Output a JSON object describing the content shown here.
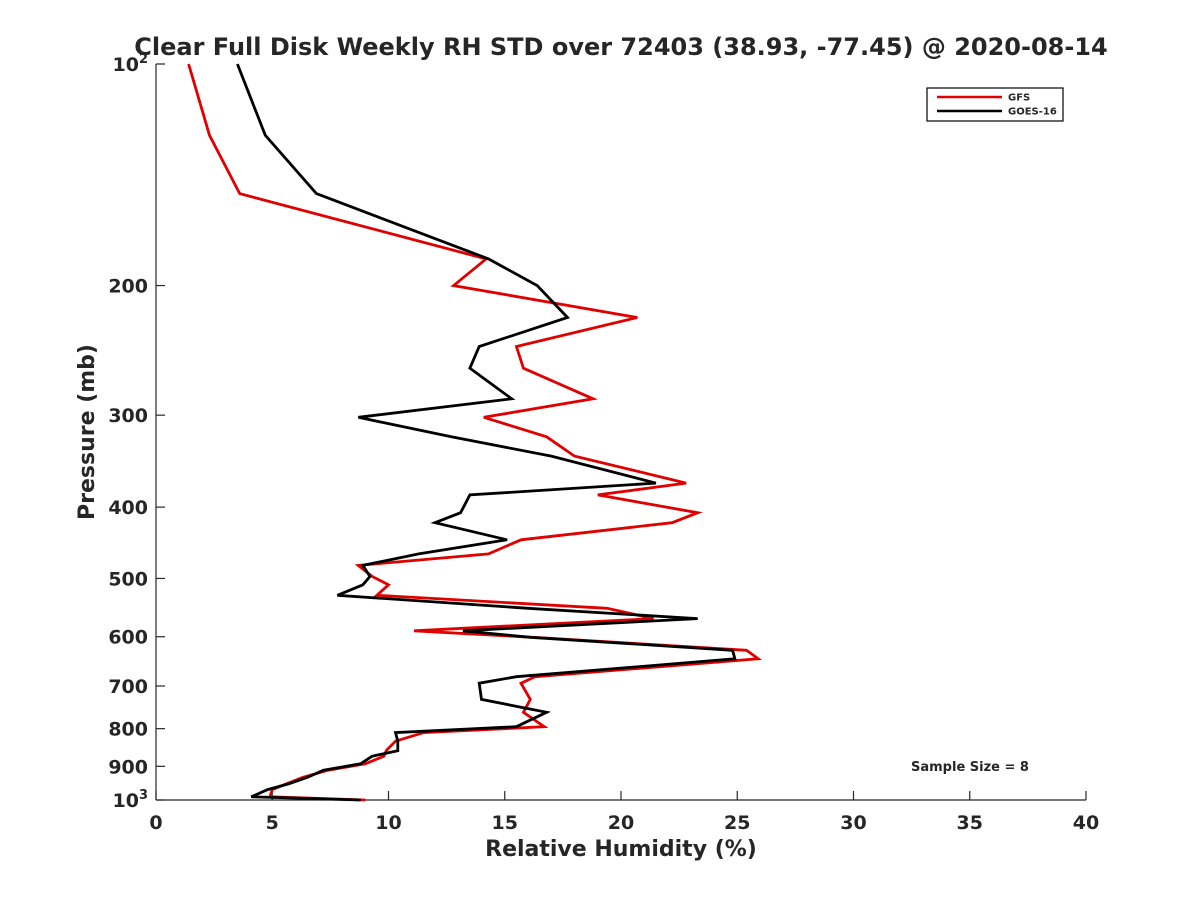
{
  "chart_data": {
    "type": "line",
    "title": "Clear Full Disk Weekly RH STD over 72403 (38.93, -77.45) @ 2020-08-14",
    "xlabel": "Relative Humidity (%)",
    "ylabel": "Pressure (mb)",
    "xlim": [
      0,
      40
    ],
    "ylim": [
      100,
      1000
    ],
    "yscale": "log",
    "y_reversed": true,
    "grid": false,
    "legend_position": "top-right",
    "x_ticks": [
      {
        "value": 0,
        "label": "0"
      },
      {
        "value": 5,
        "label": "5"
      },
      {
        "value": 10,
        "label": "10"
      },
      {
        "value": 15,
        "label": "15"
      },
      {
        "value": 20,
        "label": "20"
      },
      {
        "value": 25,
        "label": "25"
      },
      {
        "value": 30,
        "label": "30"
      },
      {
        "value": 35,
        "label": "35"
      },
      {
        "value": 40,
        "label": "40"
      }
    ],
    "y_ticks": [
      {
        "value": 100,
        "base": "10",
        "exp": "2"
      },
      {
        "value": 200,
        "base": "200",
        "exp": ""
      },
      {
        "value": 300,
        "base": "300",
        "exp": ""
      },
      {
        "value": 400,
        "base": "400",
        "exp": ""
      },
      {
        "value": 500,
        "base": "500",
        "exp": ""
      },
      {
        "value": 600,
        "base": "600",
        "exp": ""
      },
      {
        "value": 700,
        "base": "700",
        "exp": ""
      },
      {
        "value": 800,
        "base": "800",
        "exp": ""
      },
      {
        "value": 900,
        "base": "900",
        "exp": ""
      },
      {
        "value": 1000,
        "base": "10",
        "exp": "3"
      }
    ],
    "annotation": "Sample Size = 8",
    "series": [
      {
        "name": "GFS",
        "color": "#e00000",
        "points": [
          [
            1.4,
            100
          ],
          [
            2.3,
            125
          ],
          [
            3.6,
            150
          ],
          [
            14.2,
            184
          ],
          [
            12.8,
            200
          ],
          [
            20.7,
            221
          ],
          [
            15.5,
            242
          ],
          [
            15.8,
            259
          ],
          [
            18.8,
            285
          ],
          [
            14.1,
            302
          ],
          [
            16.8,
            321
          ],
          [
            18.0,
            341
          ],
          [
            22.8,
            371
          ],
          [
            19.0,
            385
          ],
          [
            23.3,
            407
          ],
          [
            22.2,
            420
          ],
          [
            15.7,
            443
          ],
          [
            14.3,
            463
          ],
          [
            8.7,
            480
          ],
          [
            9.3,
            497
          ],
          [
            10.0,
            510
          ],
          [
            9.5,
            527
          ],
          [
            19.4,
            549
          ],
          [
            21.4,
            567
          ],
          [
            11.1,
            589
          ],
          [
            16.2,
            601
          ],
          [
            25.4,
            626
          ],
          [
            25.9,
            643
          ],
          [
            16.3,
            680
          ],
          [
            15.7,
            694
          ],
          [
            16.1,
            730
          ],
          [
            15.8,
            760
          ],
          [
            16.7,
            795
          ],
          [
            11.5,
            810
          ],
          [
            10.3,
            832
          ],
          [
            9.9,
            857
          ],
          [
            9.8,
            872
          ],
          [
            9.0,
            893
          ],
          [
            7.4,
            911
          ],
          [
            6.3,
            932
          ],
          [
            5.6,
            951
          ],
          [
            5.0,
            968
          ],
          [
            4.9,
            990
          ],
          [
            9.0,
            1000
          ]
        ]
      },
      {
        "name": "GOES-16",
        "color": "#000000",
        "points": [
          [
            3.5,
            100
          ],
          [
            4.7,
            125
          ],
          [
            6.9,
            150
          ],
          [
            14.3,
            184
          ],
          [
            16.4,
            200
          ],
          [
            17.7,
            221
          ],
          [
            13.9,
            242
          ],
          [
            13.5,
            259
          ],
          [
            15.3,
            285
          ],
          [
            8.7,
            302
          ],
          [
            12.7,
            321
          ],
          [
            17.0,
            341
          ],
          [
            21.5,
            371
          ],
          [
            13.5,
            385
          ],
          [
            13.1,
            407
          ],
          [
            12.0,
            420
          ],
          [
            15.1,
            443
          ],
          [
            11.3,
            463
          ],
          [
            8.9,
            480
          ],
          [
            9.2,
            497
          ],
          [
            8.9,
            510
          ],
          [
            7.8,
            527
          ],
          [
            16.0,
            549
          ],
          [
            23.3,
            567
          ],
          [
            13.2,
            589
          ],
          [
            16.1,
            601
          ],
          [
            24.8,
            626
          ],
          [
            24.9,
            643
          ],
          [
            15.5,
            680
          ],
          [
            13.9,
            694
          ],
          [
            14.0,
            730
          ],
          [
            16.8,
            760
          ],
          [
            15.5,
            795
          ],
          [
            10.3,
            810
          ],
          [
            10.4,
            832
          ],
          [
            10.4,
            857
          ],
          [
            9.3,
            872
          ],
          [
            8.8,
            893
          ],
          [
            7.2,
            911
          ],
          [
            6.5,
            932
          ],
          [
            5.7,
            951
          ],
          [
            4.8,
            968
          ],
          [
            4.1,
            990
          ],
          [
            8.8,
            1000
          ]
        ]
      }
    ]
  }
}
